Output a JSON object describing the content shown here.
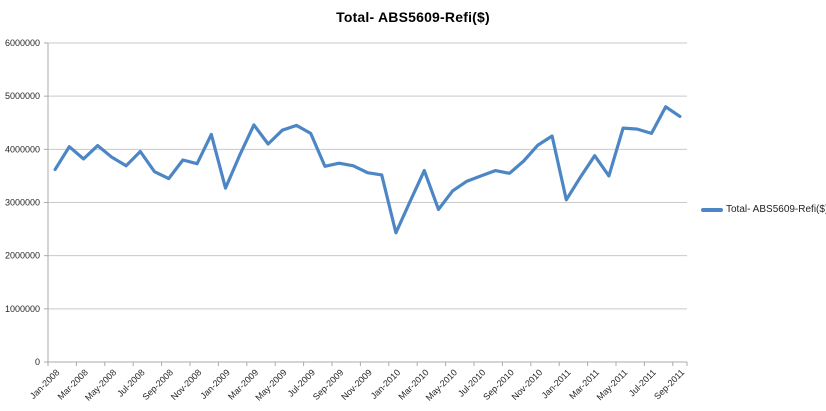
{
  "title": "Total- ABS5609-Refi($)",
  "legend": {
    "label": "Total- ABS5609-Refi($)"
  },
  "colors": {
    "line": "#4D86C4",
    "gridline": "#C9C9C9",
    "axis": "#ABABAB",
    "tick_label": "#262626",
    "title": "#000000",
    "background": "#FFFFFF"
  },
  "chart_data": {
    "type": "line",
    "title": "Total- ABS5609-Refi($)",
    "xlabel": "",
    "ylabel": "",
    "ylim": [
      0,
      6000000
    ],
    "y_ticks": [
      0,
      1000000,
      2000000,
      3000000,
      4000000,
      5000000,
      6000000
    ],
    "grid": "horizontal",
    "legend_position": "right",
    "x_label_interval": 2,
    "x": [
      "Jan-2008",
      "Feb-2008",
      "Mar-2008",
      "Apr-2008",
      "May-2008",
      "Jun-2008",
      "Jul-2008",
      "Aug-2008",
      "Sep-2008",
      "Oct-2008",
      "Nov-2008",
      "Dec-2008",
      "Jan-2009",
      "Feb-2009",
      "Mar-2009",
      "Apr-2009",
      "May-2009",
      "Jun-2009",
      "Jul-2009",
      "Aug-2009",
      "Sep-2009",
      "Oct-2009",
      "Nov-2009",
      "Dec-2009",
      "Jan-2010",
      "Feb-2010",
      "Mar-2010",
      "Apr-2010",
      "May-2010",
      "Jun-2010",
      "Jul-2010",
      "Aug-2010",
      "Sep-2010",
      "Oct-2010",
      "Nov-2010",
      "Dec-2010",
      "Jan-2011",
      "Feb-2011",
      "Mar-2011",
      "Apr-2011",
      "May-2011",
      "Jun-2011",
      "Jul-2011",
      "Aug-2011",
      "Sep-2011"
    ],
    "series": [
      {
        "name": "Total- ABS5609-Refi($)",
        "values": [
          3620000,
          4050000,
          3820000,
          4070000,
          3850000,
          3690000,
          3960000,
          3580000,
          3450000,
          3800000,
          3730000,
          4280000,
          3270000,
          3890000,
          4460000,
          4100000,
          4360000,
          4450000,
          4300000,
          3680000,
          3740000,
          3690000,
          3560000,
          3520000,
          2430000,
          3020000,
          3600000,
          2870000,
          3220000,
          3400000,
          3500000,
          3600000,
          3550000,
          3780000,
          4080000,
          4250000,
          3050000,
          3480000,
          3880000,
          3500000,
          4400000,
          4380000,
          4300000,
          4800000,
          4620000
        ]
      }
    ]
  }
}
